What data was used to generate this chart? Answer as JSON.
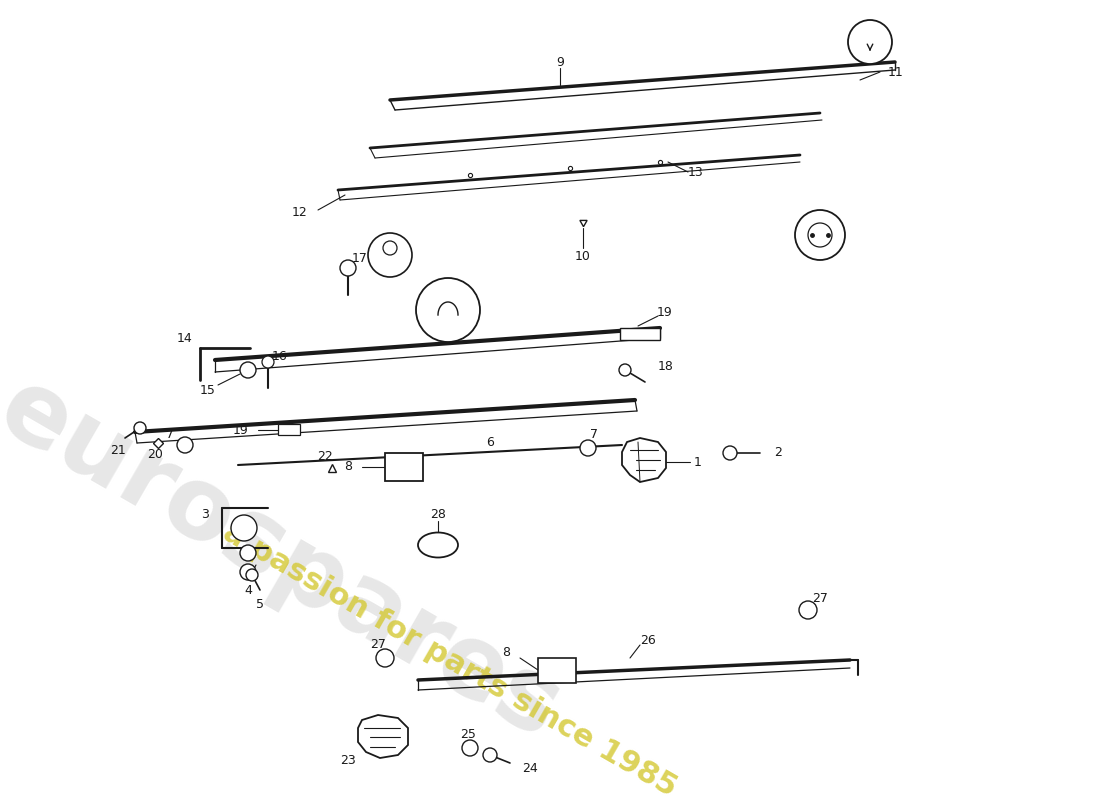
{
  "bg_color": "#ffffff",
  "line_color": "#1a1a1a",
  "watermark_color": "#d0d0d0",
  "watermark_yellow": "#d4c832",
  "figsize": [
    11.0,
    8.0
  ],
  "dpi": 100
}
